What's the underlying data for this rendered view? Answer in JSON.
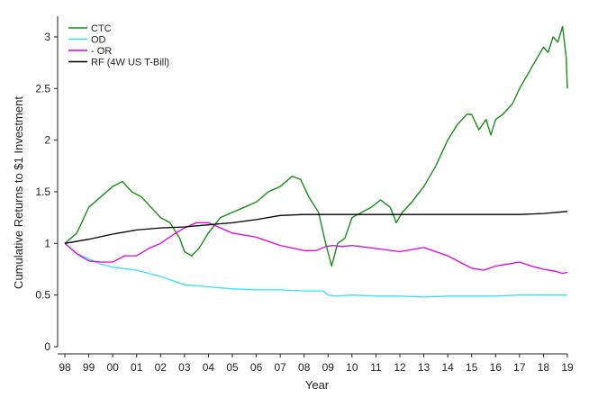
{
  "chart_data": {
    "type": "line",
    "title": "",
    "xlabel": "Year",
    "ylabel": "Cumulative Returns to $1 Investment",
    "xlim": [
      1998,
      2019
    ],
    "ylim": [
      0,
      3.2
    ],
    "x_ticks": [
      1998,
      1999,
      2000,
      2001,
      2002,
      2003,
      2004,
      2005,
      2006,
      2007,
      2008,
      2009,
      2010,
      2011,
      2012,
      2013,
      2014,
      2015,
      2016,
      2017,
      2018,
      2019
    ],
    "x_tick_labels": [
      "98",
      "99",
      "00",
      "01",
      "02",
      "03",
      "04",
      "05",
      "06",
      "07",
      "08",
      "09",
      "10",
      "11",
      "12",
      "13",
      "14",
      "15",
      "16",
      "17",
      "18",
      "19"
    ],
    "y_ticks": [
      0,
      0.5,
      1,
      1.5,
      2,
      2.5,
      3
    ],
    "y_tick_labels": [
      "0",
      "0.5",
      "1",
      "1.5",
      "2",
      "2.5",
      "3"
    ],
    "grid": false,
    "legend_position": "top-left",
    "series": [
      {
        "name": "CTC",
        "color": "#1a8c1a",
        "x": [
          1998.0,
          1998.5,
          1999.0,
          1999.5,
          2000.0,
          2000.4,
          2000.8,
          2001.2,
          2001.6,
          2002.0,
          2002.4,
          2002.8,
          2003.0,
          2003.3,
          2003.6,
          2004.0,
          2004.5,
          2005.0,
          2005.5,
          2006.0,
          2006.5,
          2007.0,
          2007.5,
          2007.85,
          2008.2,
          2008.6,
          2008.9,
          2009.15,
          2009.4,
          2009.7,
          2010.0,
          2010.4,
          2010.8,
          2011.2,
          2011.6,
          2011.85,
          2012.1,
          2012.5,
          2013.0,
          2013.5,
          2014.0,
          2014.4,
          2014.8,
          2015.0,
          2015.3,
          2015.6,
          2015.8,
          2016.0,
          2016.3,
          2016.7,
          2017.0,
          2017.5,
          2018.0,
          2018.2,
          2018.4,
          2018.6,
          2018.8,
          2018.95,
          2019.0
        ],
        "values": [
          1.0,
          1.1,
          1.35,
          1.45,
          1.55,
          1.6,
          1.5,
          1.45,
          1.35,
          1.25,
          1.2,
          1.05,
          0.92,
          0.88,
          0.95,
          1.1,
          1.25,
          1.3,
          1.35,
          1.4,
          1.5,
          1.55,
          1.65,
          1.62,
          1.45,
          1.3,
          1.0,
          0.78,
          1.0,
          1.05,
          1.25,
          1.3,
          1.35,
          1.42,
          1.35,
          1.2,
          1.3,
          1.4,
          1.55,
          1.75,
          2.0,
          2.15,
          2.25,
          2.25,
          2.1,
          2.2,
          2.05,
          2.2,
          2.25,
          2.35,
          2.5,
          2.7,
          2.9,
          2.85,
          3.0,
          2.95,
          3.1,
          2.8,
          2.5
        ]
      },
      {
        "name": "OD",
        "color": "#33e0ff",
        "x": [
          1998.0,
          1998.5,
          1999.0,
          1999.5,
          2000.0,
          2001.0,
          2002.0,
          2003.0,
          2004.0,
          2005.0,
          2006.0,
          2007.0,
          2008.0,
          2008.8,
          2009.0,
          2009.3,
          2010.0,
          2011.0,
          2012.0,
          2013.0,
          2014.0,
          2015.0,
          2016.0,
          2017.0,
          2018.0,
          2019.0
        ],
        "values": [
          1.0,
          0.9,
          0.85,
          0.8,
          0.77,
          0.74,
          0.68,
          0.6,
          0.58,
          0.56,
          0.55,
          0.55,
          0.54,
          0.54,
          0.5,
          0.49,
          0.5,
          0.49,
          0.49,
          0.48,
          0.49,
          0.49,
          0.49,
          0.5,
          0.5,
          0.5
        ]
      },
      {
        "name": "- OR",
        "color": "#e000e0",
        "x": [
          1998.0,
          1998.5,
          1999.0,
          1999.5,
          2000.0,
          2000.5,
          2001.0,
          2001.5,
          2002.0,
          2002.5,
          2003.0,
          2003.5,
          2004.0,
          2004.5,
          2005.0,
          2005.5,
          2006.0,
          2007.0,
          2008.0,
          2008.5,
          2008.9,
          2009.2,
          2009.6,
          2010.0,
          2011.0,
          2012.0,
          2013.0,
          2013.5,
          2014.0,
          2014.5,
          2015.0,
          2015.5,
          2016.0,
          2016.5,
          2017.0,
          2017.5,
          2018.0,
          2018.5,
          2018.8,
          2019.0
        ],
        "values": [
          1.0,
          0.9,
          0.83,
          0.82,
          0.82,
          0.88,
          0.88,
          0.95,
          1.0,
          1.08,
          1.15,
          1.2,
          1.2,
          1.15,
          1.1,
          1.08,
          1.06,
          0.98,
          0.93,
          0.93,
          0.97,
          0.98,
          0.97,
          0.98,
          0.95,
          0.92,
          0.96,
          0.92,
          0.88,
          0.82,
          0.76,
          0.74,
          0.78,
          0.8,
          0.82,
          0.78,
          0.75,
          0.73,
          0.71,
          0.72
        ]
      },
      {
        "name": "RF (4W US T-Bill)",
        "color": "#000000",
        "x": [
          1998.0,
          1999.0,
          2000.0,
          2001.0,
          2002.0,
          2003.0,
          2004.0,
          2005.0,
          2006.0,
          2007.0,
          2008.0,
          2008.5,
          2009.0,
          2010.0,
          2011.0,
          2012.0,
          2013.0,
          2014.0,
          2015.0,
          2016.0,
          2017.0,
          2018.0,
          2019.0
        ],
        "values": [
          1.0,
          1.04,
          1.09,
          1.13,
          1.15,
          1.16,
          1.18,
          1.2,
          1.23,
          1.27,
          1.28,
          1.28,
          1.28,
          1.28,
          1.28,
          1.28,
          1.28,
          1.28,
          1.28,
          1.28,
          1.28,
          1.29,
          1.31
        ]
      }
    ]
  }
}
